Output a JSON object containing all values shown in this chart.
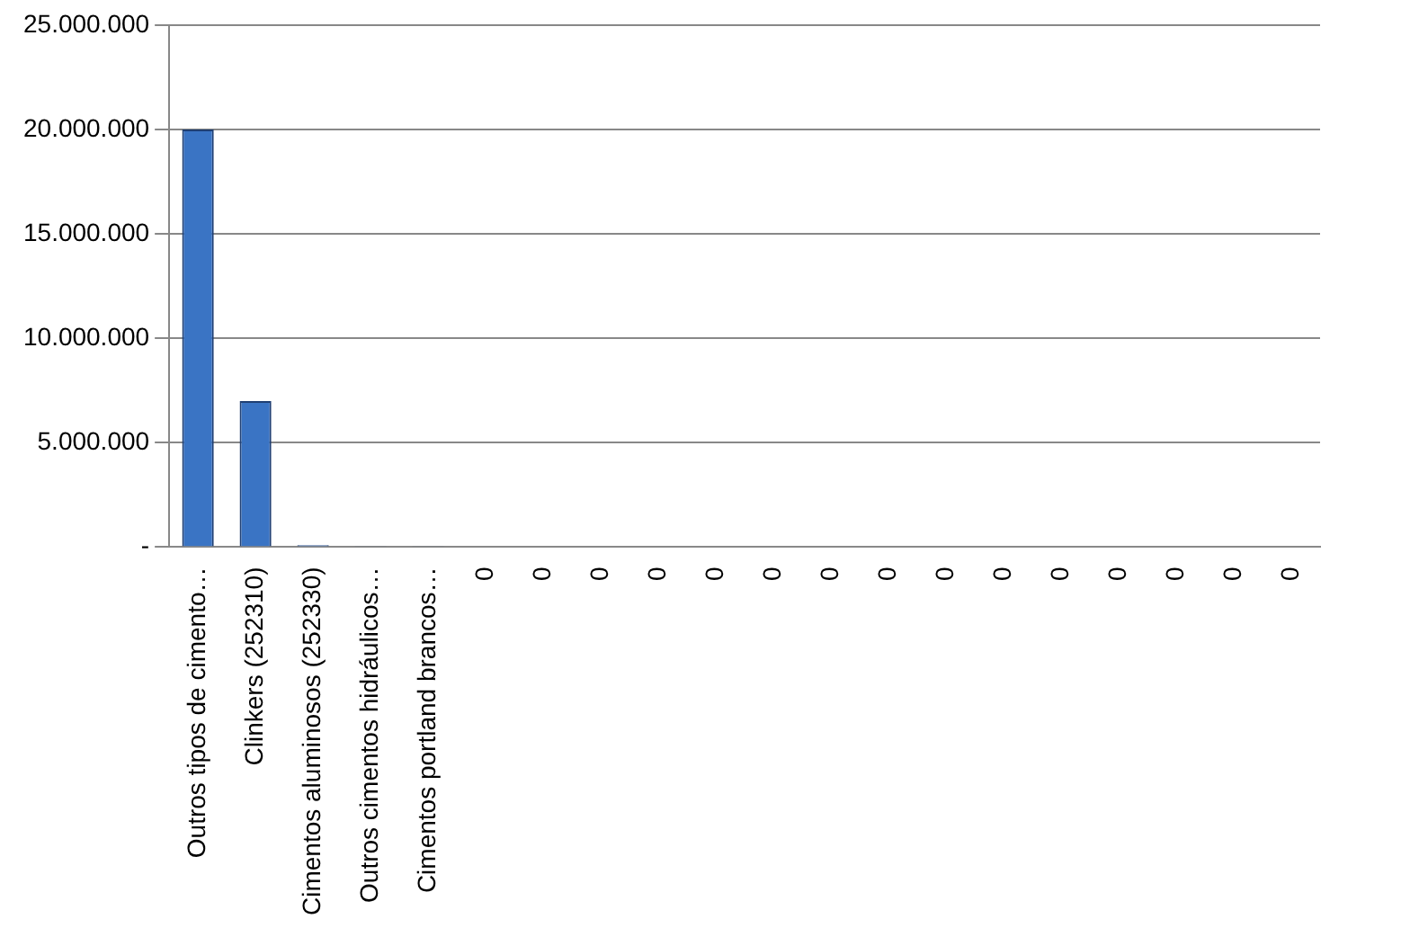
{
  "chart_data": {
    "type": "bar",
    "categories": [
      "Outros tipos de cimento…",
      "Clinkers (252310)",
      "Cimentos aluminosos (252330)",
      "Outros cimentos hidráulicos…",
      "Cimentos portland brancos…",
      "0",
      "0",
      "0",
      "0",
      "0",
      "0",
      "0",
      "0",
      "0",
      "0",
      "0",
      "0",
      "0",
      "0",
      "0"
    ],
    "values": [
      20000000,
      7000000,
      100000,
      50000,
      50000,
      0,
      0,
      0,
      0,
      0,
      0,
      0,
      0,
      0,
      0,
      0,
      0,
      0,
      0,
      0
    ],
    "color": "#3a74c4",
    "ylim": [
      0,
      25000000
    ],
    "yticks": [
      {
        "value": 0,
        "label": "-"
      },
      {
        "value": 5000000,
        "label": "5.000.000"
      },
      {
        "value": 10000000,
        "label": "10.000.000"
      },
      {
        "value": 15000000,
        "label": "15.000.000"
      },
      {
        "value": 20000000,
        "label": "20.000.000"
      },
      {
        "value": 25000000,
        "label": "25.000.000"
      }
    ],
    "grid": "y"
  }
}
